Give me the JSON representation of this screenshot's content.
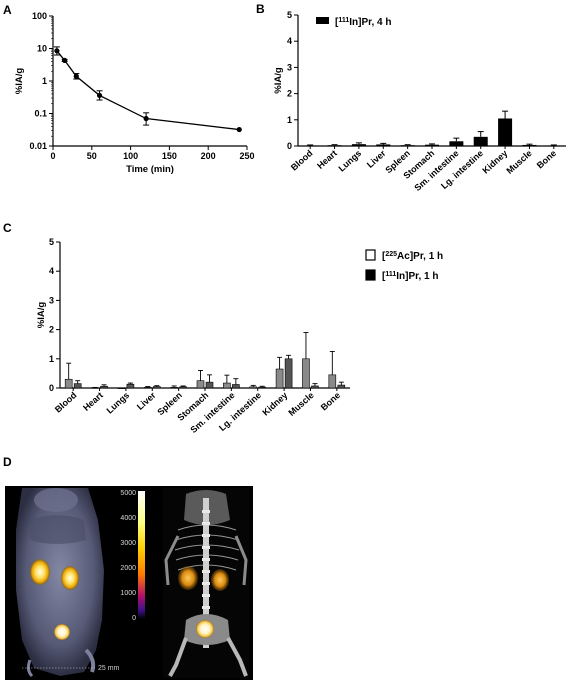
{
  "panels": {
    "A": {
      "letter": "A"
    },
    "B": {
      "letter": "B"
    },
    "C": {
      "letter": "C"
    },
    "D": {
      "letter": "D"
    }
  },
  "colors": {
    "in111": "#000000",
    "ac225": "#ffffff",
    "c_in111_fill": "#555555",
    "axis": "#000000"
  },
  "chart_data": [
    {
      "id": "A",
      "type": "line",
      "xlabel": "Time (min)",
      "ylabel": "%IA/g",
      "yscale": "log",
      "xlim": [
        0,
        250
      ],
      "ylim": [
        0.01,
        100
      ],
      "xticks": [
        0,
        50,
        100,
        150,
        200,
        250
      ],
      "yticks": [
        0.01,
        0.1,
        1,
        10,
        100
      ],
      "ytick_labels": [
        "0.01",
        "0.1",
        "1",
        "10",
        "100"
      ],
      "series": [
        {
          "x": [
            5,
            15,
            30,
            60,
            120,
            240
          ],
          "y": [
            8.5,
            4.3,
            1.4,
            0.36,
            0.07,
            0.032
          ],
          "err_low": [
            6.3,
            4.0,
            1.15,
            0.26,
            0.044,
            0.032
          ],
          "err_high": [
            11.2,
            4.6,
            1.7,
            0.5,
            0.105,
            0.032
          ]
        }
      ]
    },
    {
      "id": "B",
      "type": "bar",
      "ylabel": "%IA/g",
      "ylim": [
        0,
        5
      ],
      "yticks": [
        0,
        1,
        2,
        3,
        4,
        5
      ],
      "categories": [
        "Blood",
        "Heart",
        "Lungs",
        "Liver",
        "Spleen",
        "Stomach",
        "Sm. intestine",
        "Lg. intestine",
        "Kidney",
        "Muscle",
        "Bone"
      ],
      "legend": {
        "prefix": "[",
        "sup": "111",
        "suffix": "In]Pr, 4 h"
      },
      "series": [
        {
          "values": [
            0.02,
            0.03,
            0.07,
            0.06,
            0.03,
            0.05,
            0.18,
            0.35,
            1.05,
            0.04,
            0.02
          ],
          "errors": [
            0.02,
            0.02,
            0.05,
            0.04,
            0.02,
            0.03,
            0.12,
            0.2,
            0.28,
            0.03,
            0.02
          ]
        }
      ]
    },
    {
      "id": "C",
      "type": "bar",
      "ylabel": "%IA/g",
      "ylim": [
        0,
        5
      ],
      "yticks": [
        0,
        1,
        2,
        3,
        4,
        5
      ],
      "categories": [
        "Blood",
        "Heart",
        "Lungs",
        "Liver",
        "Spleen",
        "Stomach",
        "Sm. intestine",
        "Lg. intestine",
        "Kidney",
        "Muscle",
        "Bone"
      ],
      "legend": [
        {
          "prefix": "[",
          "sup": "225",
          "suffix": "Ac]Pr, 1 h"
        },
        {
          "prefix": "[",
          "sup": "111",
          "suffix": "In]Pr, 1 h"
        }
      ],
      "series": [
        {
          "values": [
            0.3,
            0.01,
            0.0,
            0.02,
            0.02,
            0.25,
            0.17,
            0.04,
            0.65,
            1.0,
            0.45
          ],
          "errors": [
            0.55,
            0.01,
            0.0,
            0.03,
            0.05,
            0.35,
            0.27,
            0.05,
            0.4,
            0.9,
            0.8
          ]
        },
        {
          "values": [
            0.15,
            0.06,
            0.13,
            0.05,
            0.04,
            0.2,
            0.12,
            0.03,
            1.0,
            0.07,
            0.1
          ],
          "errors": [
            0.1,
            0.05,
            0.04,
            0.03,
            0.03,
            0.25,
            0.2,
            0.03,
            0.12,
            0.08,
            0.1
          ]
        }
      ]
    }
  ],
  "imaging": {
    "colorbar_ticks": [
      "5000",
      "4000",
      "3000",
      "2000",
      "1000",
      "0"
    ],
    "scale_text": "25 mm"
  }
}
